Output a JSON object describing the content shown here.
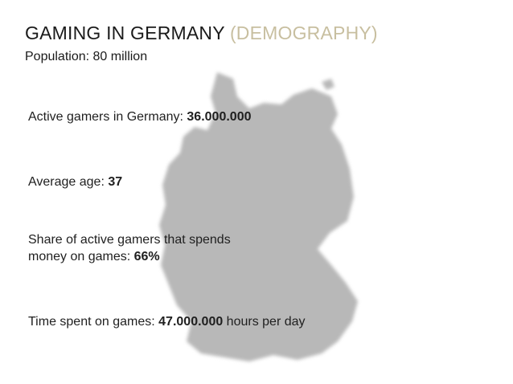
{
  "slide": {
    "title": "GAMING IN GERMANY",
    "title_accent": "(DEMOGRAPHY)",
    "subtitle": "Population: 80 million",
    "accent_color": "#c8bfa0",
    "map_color": "#b8b8b8",
    "stats": [
      {
        "label": "Active gamers in Germany: ",
        "value": "36.000.000",
        "suffix": ""
      },
      {
        "label": "Average age: ",
        "value": "37",
        "suffix": ""
      },
      {
        "label": "Share of active gamers that spends money on games: ",
        "value": "66%",
        "suffix": ""
      },
      {
        "label": "Time spent on games: ",
        "value": "47.000.000",
        "suffix": " hours per day"
      }
    ]
  }
}
